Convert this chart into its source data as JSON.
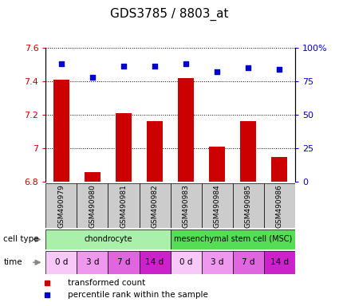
{
  "title": "GDS3785 / 8803_at",
  "samples": [
    "GSM490979",
    "GSM490980",
    "GSM490981",
    "GSM490982",
    "GSM490983",
    "GSM490984",
    "GSM490985",
    "GSM490986"
  ],
  "bar_values": [
    7.41,
    6.86,
    7.21,
    7.16,
    7.42,
    7.01,
    7.16,
    6.95
  ],
  "percentile_values": [
    88,
    78,
    86,
    86,
    88,
    82,
    85,
    84
  ],
  "ylim_left": [
    6.8,
    7.6
  ],
  "ylim_right": [
    0,
    100
  ],
  "yticks_left": [
    6.8,
    7.0,
    7.2,
    7.4,
    7.6
  ],
  "ytick_labels_left": [
    "6.8",
    "7",
    "7.2",
    "7.4",
    "7.6"
  ],
  "yticks_right": [
    0,
    25,
    50,
    75,
    100
  ],
  "ytick_labels_right": [
    "0",
    "25",
    "50",
    "75",
    "100%"
  ],
  "bar_color": "#cc0000",
  "dot_color": "#0000cc",
  "bar_width": 0.5,
  "cell_type_groups": [
    {
      "label": "chondrocyte",
      "start": 0,
      "end": 4,
      "color": "#aaf0aa"
    },
    {
      "label": "mesenchymal stem cell (MSC)",
      "start": 4,
      "end": 8,
      "color": "#55dd55"
    }
  ],
  "time_labels": [
    "0 d",
    "3 d",
    "7 d",
    "14 d",
    "0 d",
    "3 d",
    "7 d",
    "14 d"
  ],
  "time_colors": [
    "#f8c8f8",
    "#ee99ee",
    "#e066e0",
    "#cc22cc",
    "#f8c8f8",
    "#ee99ee",
    "#e066e0",
    "#cc22cc"
  ],
  "sample_bg_color": "#cccccc",
  "legend_bar_label": "transformed count",
  "legend_dot_label": "percentile rank within the sample",
  "title_fontsize": 11,
  "axis_label_color_left": "#cc0000",
  "axis_label_color_right": "#0000cc"
}
